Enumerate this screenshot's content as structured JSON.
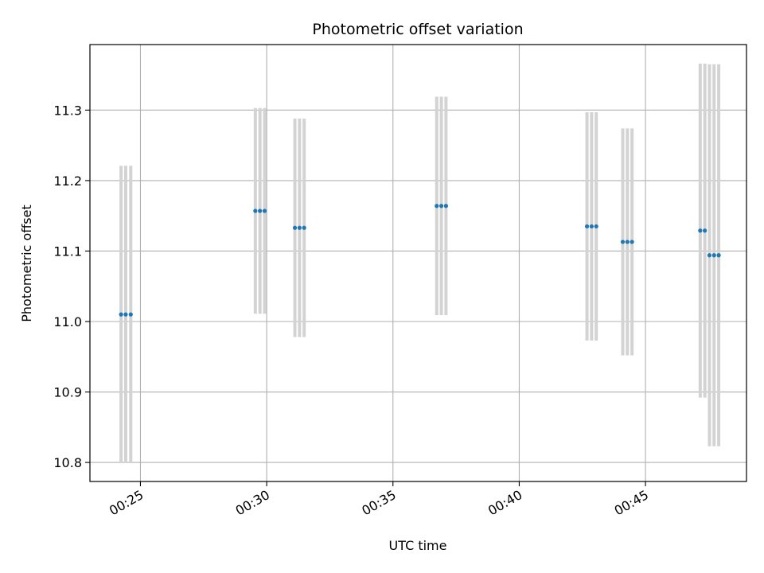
{
  "chart_data": {
    "type": "scatter",
    "title": "Photometric offset variation",
    "xlabel": "UTC time",
    "ylabel": "Photometric offset",
    "x_axis_type": "time",
    "xlim": [
      "00:23:00",
      "00:49:00"
    ],
    "ylim": [
      10.773,
      11.393
    ],
    "x_ticks": [
      "00:25",
      "00:30",
      "00:35",
      "00:40",
      "00:45"
    ],
    "y_ticks": [
      "10.8",
      "10.9",
      "11.0",
      "11.1",
      "11.2",
      "11.3"
    ],
    "grid": true,
    "legend": "none",
    "colors": {
      "point": "#1f77b4",
      "errorbar": "#d3d3d3",
      "grid": "#b0b0b0",
      "axes": "#000000"
    },
    "series": [
      {
        "points": [
          {
            "x": "00:24:14",
            "y": 11.01,
            "err": 0.211
          },
          {
            "x": "00:24:25",
            "y": 11.01,
            "err": 0.211
          },
          {
            "x": "00:24:37",
            "y": 11.01,
            "err": 0.211
          },
          {
            "x": "00:29:33",
            "y": 11.157,
            "err": 0.146
          },
          {
            "x": "00:29:44",
            "y": 11.157,
            "err": 0.146
          },
          {
            "x": "00:29:55",
            "y": 11.157,
            "err": 0.146
          },
          {
            "x": "00:31:07",
            "y": 11.133,
            "err": 0.155
          },
          {
            "x": "00:31:18",
            "y": 11.133,
            "err": 0.155
          },
          {
            "x": "00:31:29",
            "y": 11.133,
            "err": 0.155
          },
          {
            "x": "00:36:44",
            "y": 11.164,
            "err": 0.155
          },
          {
            "x": "00:36:55",
            "y": 11.164,
            "err": 0.155
          },
          {
            "x": "00:37:06",
            "y": 11.164,
            "err": 0.155
          },
          {
            "x": "00:42:41",
            "y": 11.135,
            "err": 0.162
          },
          {
            "x": "00:42:52",
            "y": 11.135,
            "err": 0.162
          },
          {
            "x": "00:43:03",
            "y": 11.135,
            "err": 0.162
          },
          {
            "x": "00:44:06",
            "y": 11.113,
            "err": 0.161
          },
          {
            "x": "00:44:17",
            "y": 11.113,
            "err": 0.161
          },
          {
            "x": "00:44:28",
            "y": 11.113,
            "err": 0.161
          },
          {
            "x": "00:47:10",
            "y": 11.129,
            "err": 0.237
          },
          {
            "x": "00:47:21",
            "y": 11.129,
            "err": 0.237
          },
          {
            "x": "00:47:32",
            "y": 11.094,
            "err": 0.271
          },
          {
            "x": "00:47:43",
            "y": 11.094,
            "err": 0.271
          },
          {
            "x": "00:47:54",
            "y": 11.094,
            "err": 0.271
          }
        ]
      }
    ]
  }
}
